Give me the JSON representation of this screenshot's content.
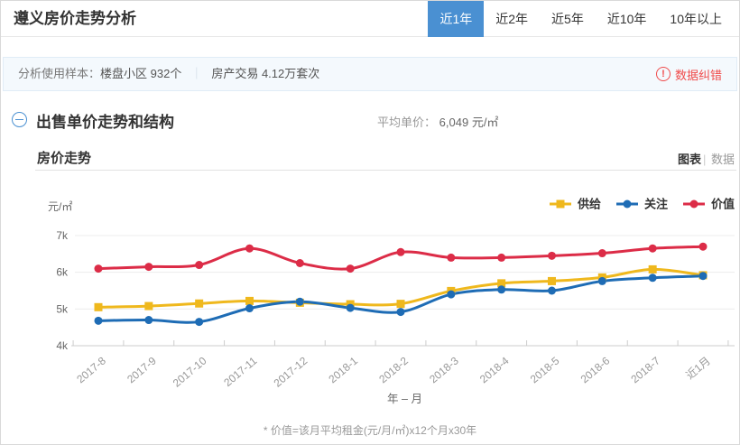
{
  "header": {
    "title": "遵义房价走势分析",
    "tabs": [
      {
        "label": "近1年",
        "active": true
      },
      {
        "label": "近2年",
        "active": false
      },
      {
        "label": "近5年",
        "active": false
      },
      {
        "label": "近10年",
        "active": false
      },
      {
        "label": "10年以上",
        "active": false
      }
    ]
  },
  "sample_bar": {
    "label": "分析使用样本：",
    "item1": "楼盘小区 932个",
    "separator": "｜",
    "item2": "房产交易 4.12万套次",
    "correction_icon": "!",
    "correction_label": "数据纠错"
  },
  "section": {
    "title": "出售单价走势和结构",
    "avg_label": "平均单价：",
    "avg_value": "6,049",
    "avg_unit": "元/㎡"
  },
  "card": {
    "title": "房价走势",
    "view_chart": "图表",
    "view_divider": "|",
    "view_data": "数据"
  },
  "chart_data": {
    "type": "line",
    "title": "房价走势",
    "y_unit_label": "元/㎡",
    "xlabel": "年 – 月",
    "ylim": [
      4000,
      7000
    ],
    "y_ticks": [
      "4k",
      "5k",
      "6k",
      "7k"
    ],
    "grid": true,
    "legend_position": "top-right",
    "categories": [
      "2017-8",
      "2017-9",
      "2017-10",
      "2017-11",
      "2017-12",
      "2018-1",
      "2018-2",
      "2018-3",
      "2018-4",
      "2018-5",
      "2018-6",
      "2018-7",
      "近1月"
    ],
    "series": [
      {
        "name": "供给",
        "color": "#efb81d",
        "marker": "square",
        "values": [
          5050,
          5080,
          5150,
          5220,
          5170,
          5130,
          5140,
          5490,
          5700,
          5760,
          5860,
          6080,
          5920
        ]
      },
      {
        "name": "关注",
        "color": "#1e6cb5",
        "marker": "circle",
        "values": [
          4680,
          4700,
          4650,
          5020,
          5200,
          5030,
          4920,
          5400,
          5530,
          5500,
          5760,
          5850,
          5900
        ]
      },
      {
        "name": "价值",
        "color": "#dc2c47",
        "marker": "circle",
        "values": [
          6100,
          6150,
          6200,
          6650,
          6250,
          6100,
          6550,
          6400,
          6400,
          6450,
          6520,
          6650,
          6700
        ]
      }
    ]
  },
  "footnote": "* 价值=该月平均租金(元/月/㎡)x12个月x30年",
  "colors": {
    "tab_active_bg": "#4a90d2",
    "accent_blue": "#4a90d2",
    "correction_red": "#f04b4b",
    "supply_yellow": "#efb81d",
    "focus_blue": "#1e6cb5",
    "value_red": "#dc2c47"
  }
}
